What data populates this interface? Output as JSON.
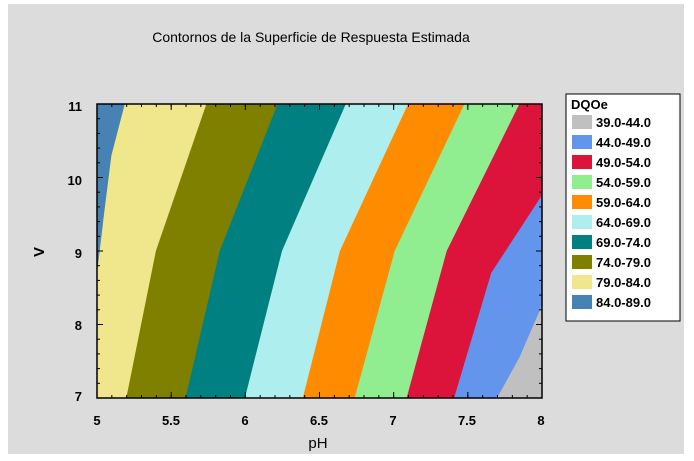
{
  "chart_data": {
    "type": "contour",
    "title": "Contornos de la Superficie de Respuesta Estimada",
    "xlabel": "pH",
    "ylabel": "V",
    "xlim": [
      5,
      8
    ],
    "ylim": [
      7,
      11
    ],
    "x_ticks": [
      "5",
      "5.5",
      "6",
      "6.5",
      "7",
      "7.5",
      "8"
    ],
    "y_ticks": [
      "7",
      "8",
      "9",
      "10",
      "11"
    ],
    "legend_title": "DQOe",
    "legend_position": "right",
    "levels": [
      {
        "label": "39.0-44.0",
        "color": "#c0c0c0"
      },
      {
        "label": "44.0-49.0",
        "color": "#6495ed"
      },
      {
        "label": "49.0-54.0",
        "color": "#dc143c"
      },
      {
        "label": "54.0-59.0",
        "color": "#90ee90"
      },
      {
        "label": "59.0-64.0",
        "color": "#ff8c00"
      },
      {
        "label": "64.0-69.0",
        "color": "#afeeee"
      },
      {
        "label": "69.0-74.0",
        "color": "#008080"
      },
      {
        "label": "74.0-79.0",
        "color": "#808000"
      },
      {
        "label": "79.0-84.0",
        "color": "#f0e68c"
      },
      {
        "label": "84.0-89.0",
        "color": "#4682b4"
      }
    ],
    "contour_boundaries": [
      {
        "between": "84.0-89.0 | 79.0-84.0",
        "points": [
          [
            5.0,
            8.65
          ],
          [
            5.05,
            9.5
          ],
          [
            5.1,
            10.3
          ],
          [
            5.19,
            11
          ]
        ]
      },
      {
        "between": "79.0-84.0 | 74.0-79.0",
        "points": [
          [
            5.2,
            7.0
          ],
          [
            5.4,
            9.0
          ],
          [
            5.74,
            11
          ]
        ]
      },
      {
        "between": "74.0-79.0 | 69.0-74.0",
        "points": [
          [
            5.6,
            7.0
          ],
          [
            5.83,
            9.0
          ],
          [
            6.22,
            11
          ]
        ]
      },
      {
        "between": "69.0-74.0 | 64.0-69.0",
        "points": [
          [
            6.0,
            7.0
          ],
          [
            6.25,
            9.0
          ],
          [
            6.68,
            11
          ]
        ]
      },
      {
        "between": "64.0-69.0 | 59.0-64.0",
        "points": [
          [
            6.39,
            7.0
          ],
          [
            6.64,
            9.0
          ],
          [
            7.1,
            11
          ]
        ]
      },
      {
        "between": "59.0-64.0 | 54.0-59.0",
        "points": [
          [
            6.74,
            7.0
          ],
          [
            7.01,
            9.0
          ],
          [
            7.48,
            11
          ]
        ]
      },
      {
        "between": "54.0-59.0 | 49.0-54.0",
        "points": [
          [
            7.09,
            7.0
          ],
          [
            7.36,
            9.0
          ],
          [
            7.85,
            11
          ]
        ]
      },
      {
        "between": "49.0-54.0 | 44.0-49.0",
        "points": [
          [
            7.41,
            7.0
          ],
          [
            7.66,
            8.7
          ],
          [
            8.0,
            9.75
          ]
        ]
      },
      {
        "between": "44.0-49.0 | 39.0-44.0",
        "points": [
          [
            7.7,
            7.0
          ],
          [
            7.85,
            7.55
          ],
          [
            8.0,
            8.25
          ]
        ]
      }
    ]
  }
}
